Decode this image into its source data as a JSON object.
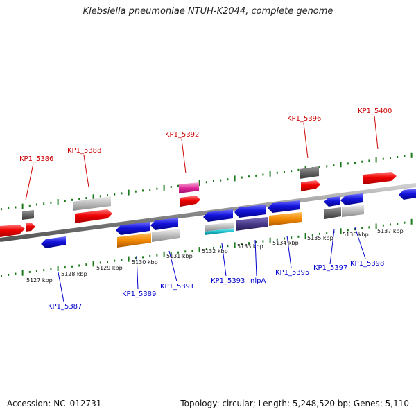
{
  "header": {
    "title": "Klebsiella pneumoniae NTUH-K2044, complete genome"
  },
  "footer": {
    "accession": "Accession: NC_012731",
    "summary": "Topology: circular; Length: 5,248,520 bp; Genes: 5,110"
  },
  "colors": {
    "plus_label": "#cc0000",
    "minus_label": "#0000cc",
    "tick": "#1a7a1a",
    "backbone": "#8a8a8a",
    "red_gene": "#ee0000",
    "blue_gene": "#1515dd",
    "gray_gene": "#bdbdbd",
    "dark_gray_gene": "#666666",
    "orange_gene": "#f28a00",
    "pink_gene": "#e0289a",
    "teal_gene": "#19c2cf",
    "indigo_gene": "#4a3a8a"
  },
  "axis": {
    "tick_labels": [
      "5127 kbp",
      "5128 kbp",
      "5129 kbp",
      "5130 kbp",
      "5131 kbp",
      "5132 kbp",
      "5133 kbp",
      "5134 kbp",
      "5135 kbp",
      "5136 kbp",
      "5137 kbp"
    ]
  },
  "genes_plus_labels": [
    "KP1_5386",
    "KP1_5388",
    "KP1_5392",
    "KP1_5396",
    "KP1_5400"
  ],
  "genes_minus_labels": [
    "KP1_5387",
    "KP1_5389",
    "KP1_5391",
    "KP1_5393",
    "nlpA",
    "KP1_5395",
    "KP1_5397",
    "KP1_5398"
  ]
}
